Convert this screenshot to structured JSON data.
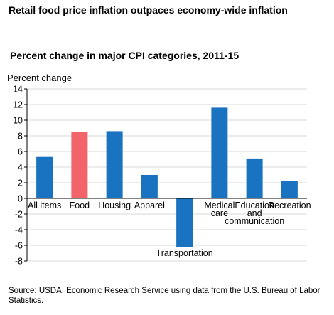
{
  "title": "Retail food price inflation outpaces economy-wide inflation",
  "chart_data": {
    "type": "bar",
    "title": "Percent change in major CPI categories, 2011-15",
    "xlabel": "",
    "ylabel": "Percent change",
    "ylim": [
      -8,
      14
    ],
    "yticks": [
      14,
      12,
      10,
      8,
      6,
      4,
      2,
      0,
      -2,
      -4,
      -6,
      -8
    ],
    "grid": true,
    "categories": [
      [
        "All items"
      ],
      [
        "Food"
      ],
      [
        "Housing"
      ],
      [
        "Apparel"
      ],
      [
        "Transportation"
      ],
      [
        "Medical",
        "care"
      ],
      [
        "Education",
        "and",
        "communication"
      ],
      [
        "Recreation"
      ]
    ],
    "values": [
      5.3,
      8.5,
      8.6,
      3.0,
      -6.2,
      11.6,
      5.1,
      2.2
    ],
    "bar_colors": [
      "#1a73c0",
      "#f0646a",
      "#1a73c0",
      "#1a73c0",
      "#1a73c0",
      "#1a73c0",
      "#1a73c0",
      "#1a73c0"
    ],
    "grid_color": "#d9d9d9",
    "axis_color": "#000000"
  },
  "source": "Source: USDA, Economic Research Service using data from the U.S. Bureau of Labor Statistics."
}
